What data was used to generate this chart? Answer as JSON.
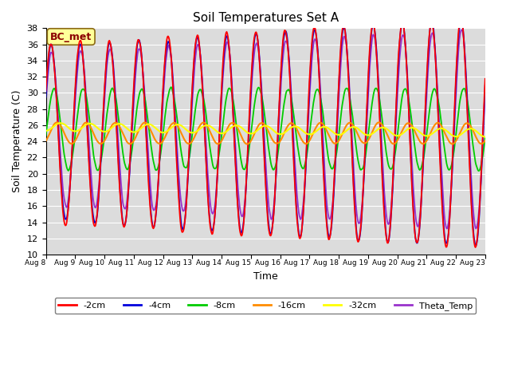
{
  "title": "Soil Temperatures Set A",
  "xlabel": "Time",
  "ylabel": "Soil Temperature (C)",
  "ylim": [
    10,
    38
  ],
  "annotation_text": "BC_met",
  "annotation_color": "#8B0000",
  "annotation_bg": "#FFFF99",
  "bg_color": "#DCDCDC",
  "line_colors": {
    "-2cm": "#FF0000",
    "-4cm": "#0000DD",
    "-8cm": "#00CC00",
    "-16cm": "#FF8C00",
    "-32cm": "#FFFF00",
    "Theta_Temp": "#9933CC"
  },
  "line_widths": {
    "-2cm": 1.3,
    "-4cm": 1.3,
    "-8cm": 1.3,
    "-16cm": 1.5,
    "-32cm": 1.5,
    "Theta_Temp": 1.3
  },
  "num_days": 15,
  "start_day": 8,
  "points_per_day": 48
}
